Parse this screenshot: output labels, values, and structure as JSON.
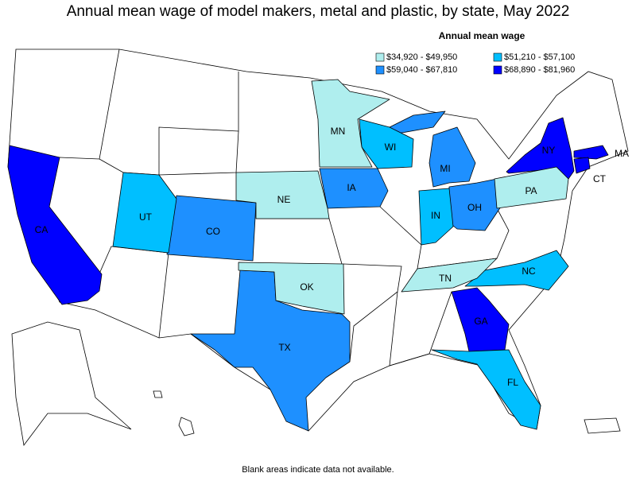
{
  "title": "Annual mean wage of model makers, metal and plastic, by state, May 2022",
  "legend": {
    "title": "Annual mean wage",
    "items": [
      {
        "label": "$34,920 - $49,950",
        "color": "#afeeee"
      },
      {
        "label": "$51,210 - $57,100",
        "color": "#00bfff"
      },
      {
        "label": "$59,040 - $67,810",
        "color": "#1e90ff"
      },
      {
        "label": "$68,890 - $81,960",
        "color": "#0000ff"
      }
    ]
  },
  "states": [
    {
      "label": "CA",
      "class": 3
    },
    {
      "label": "NY",
      "class": 3
    },
    {
      "label": "MA",
      "class": 3
    },
    {
      "label": "CT",
      "class": 3
    },
    {
      "label": "GA",
      "class": 3
    },
    {
      "label": "TX",
      "class": 2
    },
    {
      "label": "CO",
      "class": 2
    },
    {
      "label": "IA",
      "class": 2
    },
    {
      "label": "MI",
      "class": 2
    },
    {
      "label": "OH",
      "class": 2
    },
    {
      "label": "UT",
      "class": 1
    },
    {
      "label": "WI",
      "class": 1
    },
    {
      "label": "IN",
      "class": 1
    },
    {
      "label": "NC",
      "class": 1
    },
    {
      "label": "FL",
      "class": 1
    },
    {
      "label": "MN",
      "class": 0
    },
    {
      "label": "NE",
      "class": 0
    },
    {
      "label": "OK",
      "class": 0
    },
    {
      "label": "TN",
      "class": 0
    },
    {
      "label": "PA",
      "class": 0
    }
  ],
  "note": "Blank areas indicate data not available."
}
